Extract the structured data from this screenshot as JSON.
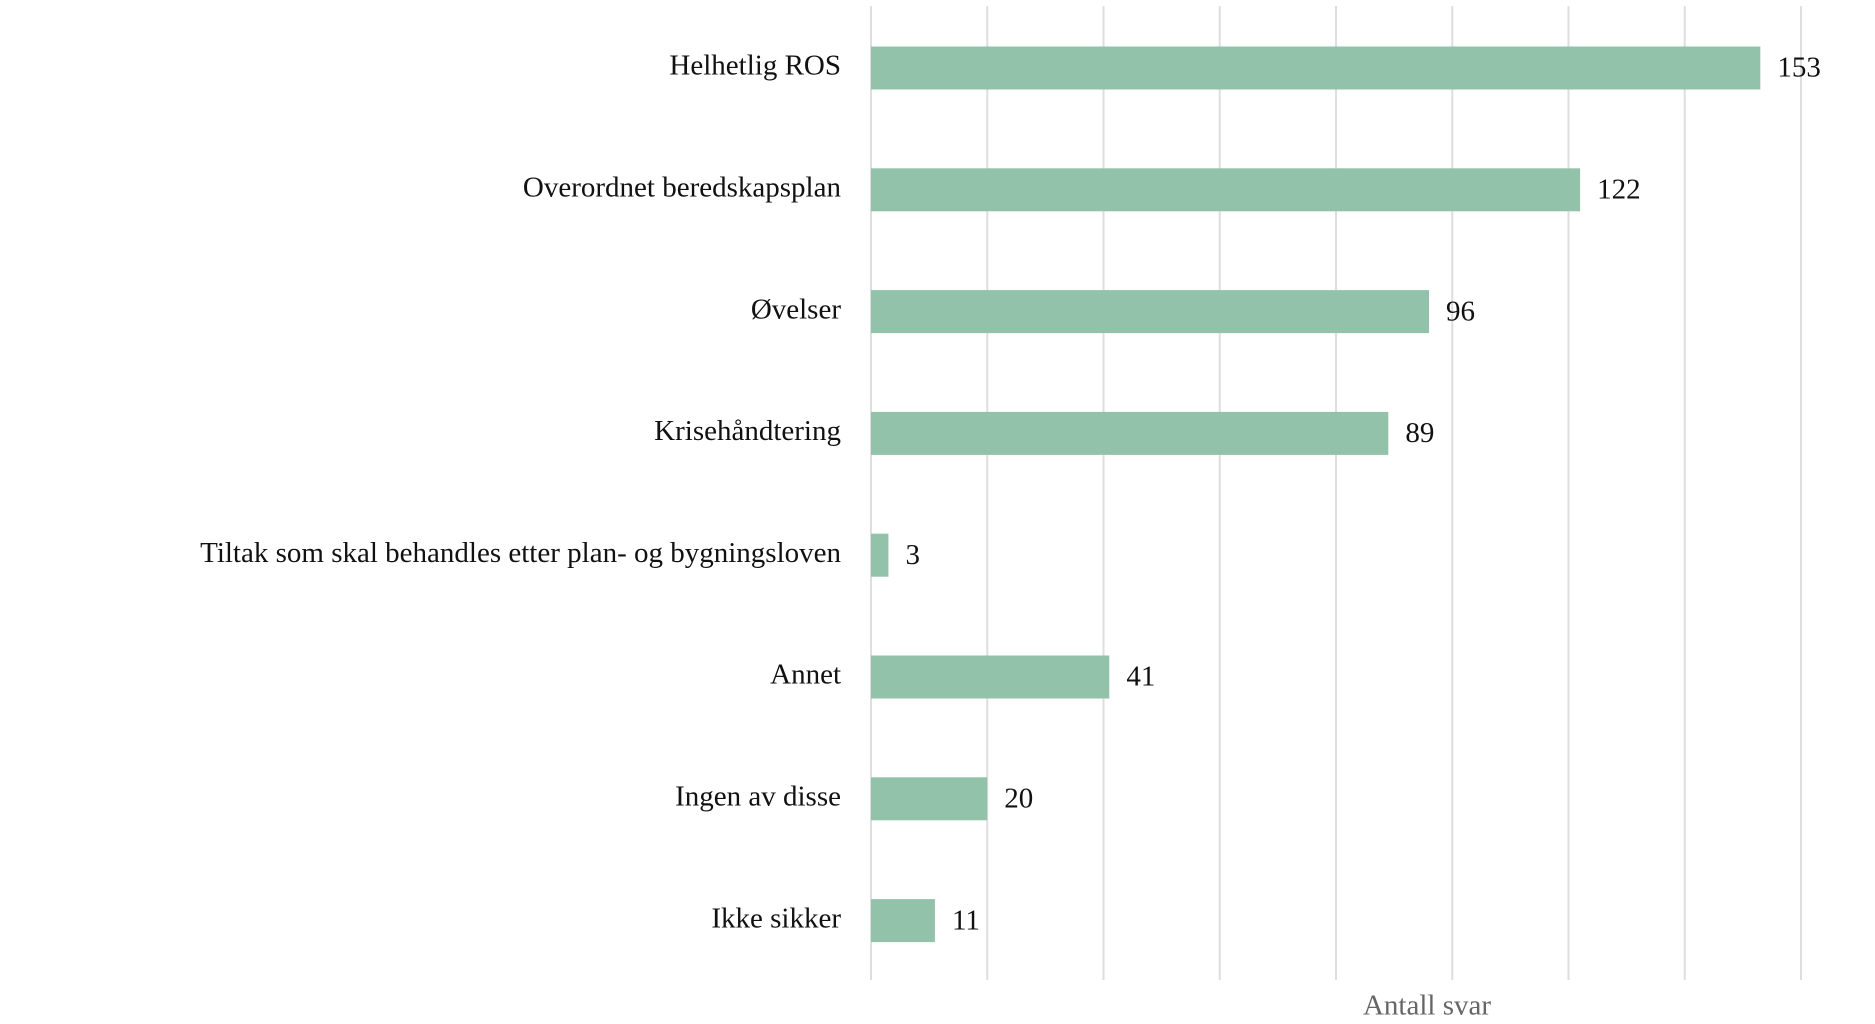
{
  "chart_data": {
    "type": "bar",
    "orientation": "horizontal",
    "categories": [
      "Helhetlig ROS",
      "Overordnet beredskapsplan",
      "Øvelser",
      "Krisehåndtering",
      "Tiltak som skal behandles etter plan- og bygningsloven",
      "Annet",
      "Ingen av disse",
      "Ikke sikker"
    ],
    "values": [
      153,
      122,
      96,
      89,
      3,
      41,
      20,
      11
    ],
    "color": "#93c2ab",
    "xlabel": "Antall svar",
    "xlim": [
      0,
      160
    ],
    "xticks": [
      0,
      20,
      40,
      60,
      80,
      100,
      120,
      140,
      160
    ],
    "grid": true
  }
}
